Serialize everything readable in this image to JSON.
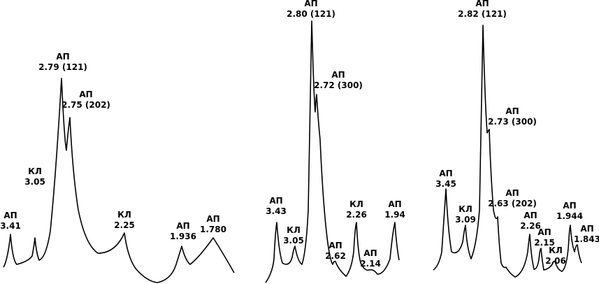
{
  "panels": [
    {
      "peaks": [
        {
          "phase": "АП",
          "d": "3.41"
        },
        {
          "phase": "КЛ",
          "d": "3.05"
        },
        {
          "phase": "АП",
          "d": "2.79 (121)"
        },
        {
          "phase": "АП",
          "d": "2.75 (202)"
        },
        {
          "phase": "КЛ",
          "d": "2.25"
        },
        {
          "phase": "АП",
          "d": "1.936"
        },
        {
          "phase": "АП",
          "d": "1.780"
        }
      ]
    },
    {
      "peaks": [
        {
          "phase": "АП",
          "d": "2.80 (121)"
        },
        {
          "phase": "АП",
          "d": "2.72 (300)"
        },
        {
          "phase": "АП",
          "d": "3.43"
        },
        {
          "phase": "КЛ",
          "d": "3.05"
        },
        {
          "phase": "АП",
          "d": "2.62"
        },
        {
          "phase": "КЛ",
          "d": "2.26"
        },
        {
          "phase": "АП",
          "d": "2.14"
        },
        {
          "phase": "АП",
          "d": "1.94"
        }
      ]
    },
    {
      "peaks": [
        {
          "phase": "АП",
          "d": "2.82 (121)"
        },
        {
          "phase": "АП",
          "d": "2.73 (300)"
        },
        {
          "phase": "АП",
          "d": "3.45"
        },
        {
          "phase": "КЛ",
          "d": "3.09"
        },
        {
          "phase": "АП",
          "d": "2.63 (202)"
        },
        {
          "phase": "АП",
          "d": "2.26"
        },
        {
          "phase": "АП",
          "d": "2.15"
        },
        {
          "phase": "КЛ",
          "d": "2.06"
        },
        {
          "phase": "АП",
          "d": "1.944"
        },
        {
          "phase": "АП",
          "d": "1.843"
        }
      ]
    }
  ]
}
